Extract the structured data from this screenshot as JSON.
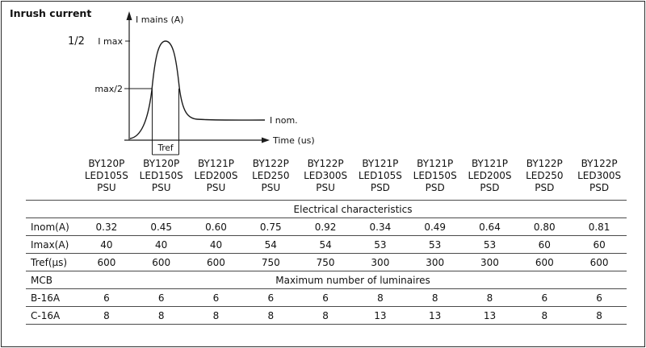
{
  "title": "Inrush current",
  "diagram": {
    "fraction_label": "1/2",
    "y_axis_label": "I mains (A)",
    "x_axis_label": "Time (us)",
    "imax_label": "I max",
    "half_max_label": "max/2",
    "inom_label": "I nom.",
    "tref_label": "Tref"
  },
  "table": {
    "columns": [
      "BY120P\nLED105S\nPSU",
      "BY120P\nLED150S\nPSU",
      "BY121P\nLED200S\nPSU",
      "BY122P\nLED250\nPSU",
      "BY122P\nLED300S\nPSU",
      "BY121P\nLED105S\nPSD",
      "BY121P\nLED150S\nPSD",
      "BY121P\nLED200S\nPSD",
      "BY122P\nLED250\nPSD",
      "BY122P\nLED300S\nPSD"
    ],
    "sections": [
      {
        "label": "",
        "title": "Electrical characteristics",
        "rows": [
          {
            "label": "Inom(A)",
            "values": [
              "0.32",
              "0.45",
              "0.60",
              "0.75",
              "0.92",
              "0.34",
              "0.49",
              "0.64",
              "0.80",
              "0.81"
            ]
          },
          {
            "label": "Imax(A)",
            "values": [
              "40",
              "40",
              "40",
              "54",
              "54",
              "53",
              "53",
              "53",
              "60",
              "60"
            ]
          },
          {
            "label": "Tref(µs)",
            "values": [
              "600",
              "600",
              "600",
              "750",
              "750",
              "300",
              "300",
              "300",
              "600",
              "600"
            ]
          }
        ]
      },
      {
        "label": "MCB",
        "title": "Maximum number of luminaires",
        "rows": [
          {
            "label": "B-16A",
            "values": [
              "6",
              "6",
              "6",
              "6",
              "6",
              "8",
              "8",
              "8",
              "6",
              "6"
            ]
          },
          {
            "label": "C-16A",
            "values": [
              "8",
              "8",
              "8",
              "8",
              "8",
              "13",
              "13",
              "13",
              "8",
              "8"
            ]
          }
        ]
      }
    ]
  }
}
